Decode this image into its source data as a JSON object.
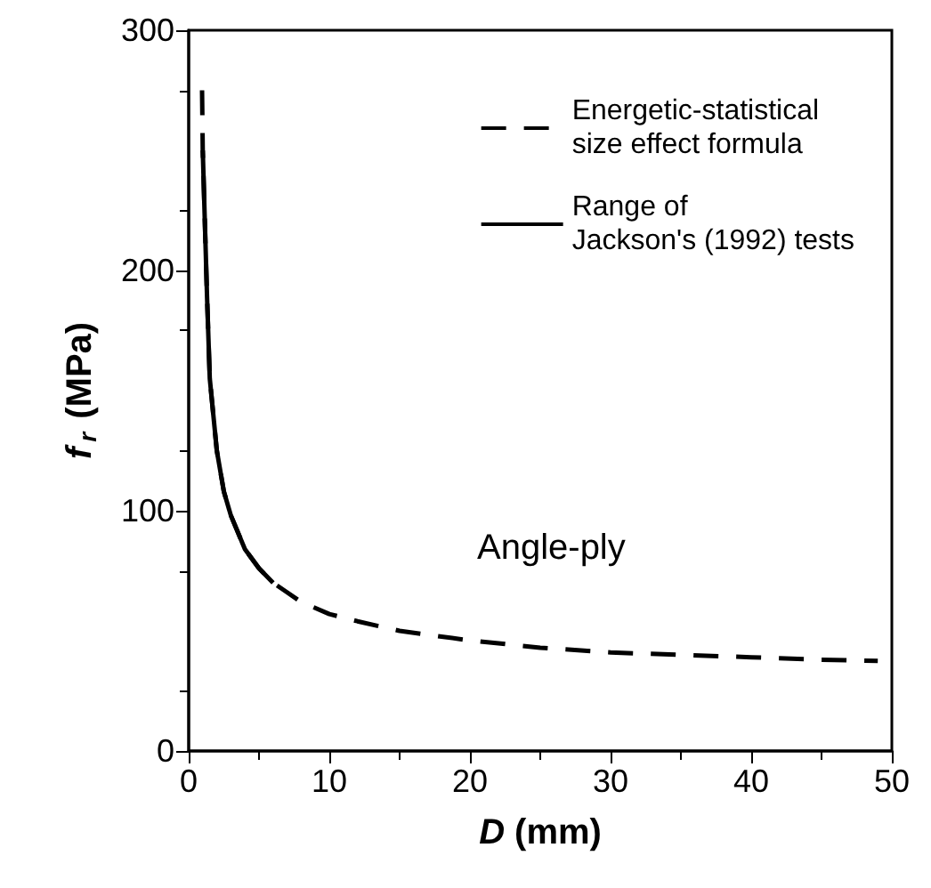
{
  "chart_data": {
    "type": "line",
    "xlabel": "D (mm)",
    "ylabel": "f$_{r}$ (MPa)",
    "xlim": [
      0,
      50
    ],
    "xticks": [
      0,
      10,
      20,
      30,
      40,
      50
    ],
    "ylim": [
      0,
      300
    ],
    "yticks": [
      0,
      100,
      200,
      300
    ],
    "series": [
      {
        "name": "Energetic-statistical\nsize effect formula",
        "color": "#000000",
        "line_style": "dashed",
        "x": [
          0.95,
          1,
          1.3,
          1.5,
          2,
          2.5,
          3,
          4,
          5,
          6,
          7,
          8,
          10,
          12,
          15,
          20,
          25,
          30,
          35,
          40,
          45,
          49
        ],
        "values": [
          275,
          250,
          190,
          155,
          125,
          108,
          98,
          84,
          76,
          70,
          66,
          62,
          57,
          54,
          50,
          46,
          43,
          41,
          40,
          39,
          38,
          37.5
        ]
      },
      {
        "name": "Range of\nJackson's (1992) tests",
        "color": "#000000",
        "line_style": "solid",
        "x": [
          1,
          1.3,
          1.5,
          2,
          2.5,
          3,
          4,
          5,
          6
        ],
        "values": [
          250,
          190,
          155,
          125,
          108,
          98,
          84,
          76,
          70
        ]
      }
    ],
    "annotations": [
      "Angle-ply"
    ],
    "legend": "top right",
    "grid": false,
    "marker": "none"
  }
}
